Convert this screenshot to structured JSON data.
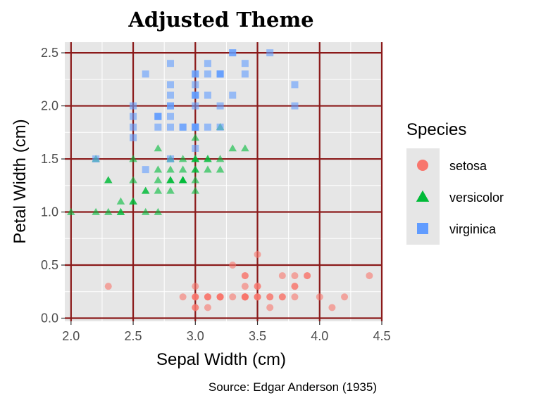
{
  "chart_data": {
    "type": "scatter",
    "title": "Adjusted Theme",
    "xlabel": "Sepal Width (cm)",
    "ylabel": "Petal Width (cm)",
    "caption": "Source: Edgar Anderson (1935)",
    "xlim": [
      1.95,
      4.5
    ],
    "ylim": [
      -0.03,
      2.6
    ],
    "xticks": [
      2.0,
      2.5,
      3.0,
      3.5,
      4.0,
      4.5
    ],
    "xtick_labels": [
      "2.0",
      "2.5",
      "3.0",
      "3.5",
      "4.0",
      "4.5"
    ],
    "yticks": [
      0.0,
      0.5,
      1.0,
      1.5,
      2.0,
      2.5
    ],
    "ytick_labels": [
      "0.0",
      "0.5",
      "1.0",
      "1.5",
      "2.0",
      "2.5"
    ],
    "grid": true,
    "legend": {
      "title": "Species",
      "position": "right"
    },
    "series": [
      {
        "name": "setosa",
        "marker": "circle",
        "color": "#F8766D",
        "points": [
          [
            3.5,
            0.2
          ],
          [
            3.0,
            0.2
          ],
          [
            3.2,
            0.2
          ],
          [
            3.1,
            0.2
          ],
          [
            3.6,
            0.2
          ],
          [
            3.9,
            0.4
          ],
          [
            3.4,
            0.3
          ],
          [
            3.4,
            0.2
          ],
          [
            2.9,
            0.2
          ],
          [
            3.1,
            0.1
          ],
          [
            3.7,
            0.2
          ],
          [
            3.4,
            0.2
          ],
          [
            3.0,
            0.1
          ],
          [
            3.0,
            0.1
          ],
          [
            4.0,
            0.2
          ],
          [
            4.4,
            0.4
          ],
          [
            3.9,
            0.4
          ],
          [
            3.5,
            0.3
          ],
          [
            3.8,
            0.3
          ],
          [
            3.8,
            0.3
          ],
          [
            3.4,
            0.2
          ],
          [
            3.7,
            0.4
          ],
          [
            3.6,
            0.2
          ],
          [
            3.3,
            0.5
          ],
          [
            3.4,
            0.2
          ],
          [
            3.0,
            0.2
          ],
          [
            3.4,
            0.4
          ],
          [
            3.5,
            0.2
          ],
          [
            3.4,
            0.2
          ],
          [
            3.2,
            0.2
          ],
          [
            3.1,
            0.2
          ],
          [
            3.4,
            0.4
          ],
          [
            4.1,
            0.1
          ],
          [
            4.2,
            0.2
          ],
          [
            3.1,
            0.2
          ],
          [
            3.2,
            0.2
          ],
          [
            3.5,
            0.2
          ],
          [
            3.6,
            0.1
          ],
          [
            3.0,
            0.2
          ],
          [
            3.4,
            0.2
          ],
          [
            3.5,
            0.3
          ],
          [
            2.3,
            0.3
          ],
          [
            3.2,
            0.2
          ],
          [
            3.5,
            0.6
          ],
          [
            3.8,
            0.4
          ],
          [
            3.0,
            0.3
          ],
          [
            3.8,
            0.2
          ],
          [
            3.2,
            0.2
          ],
          [
            3.7,
            0.2
          ],
          [
            3.3,
            0.2
          ]
        ]
      },
      {
        "name": "versicolor",
        "marker": "triangle",
        "color": "#00BA38",
        "points": [
          [
            3.2,
            1.4
          ],
          [
            3.2,
            1.5
          ],
          [
            3.1,
            1.5
          ],
          [
            2.3,
            1.3
          ],
          [
            2.8,
            1.5
          ],
          [
            2.8,
            1.3
          ],
          [
            3.3,
            1.6
          ],
          [
            2.4,
            1.0
          ],
          [
            2.9,
            1.3
          ],
          [
            2.7,
            1.4
          ],
          [
            2.0,
            1.0
          ],
          [
            3.0,
            1.5
          ],
          [
            2.2,
            1.0
          ],
          [
            2.9,
            1.4
          ],
          [
            2.9,
            1.3
          ],
          [
            3.1,
            1.4
          ],
          [
            3.0,
            1.5
          ],
          [
            2.7,
            1.0
          ],
          [
            2.2,
            1.5
          ],
          [
            2.5,
            1.1
          ],
          [
            3.2,
            1.8
          ],
          [
            2.8,
            1.3
          ],
          [
            2.5,
            1.5
          ],
          [
            2.8,
            1.2
          ],
          [
            2.9,
            1.3
          ],
          [
            3.0,
            1.4
          ],
          [
            2.8,
            1.4
          ],
          [
            3.0,
            1.7
          ],
          [
            2.9,
            1.5
          ],
          [
            2.6,
            1.0
          ],
          [
            2.4,
            1.1
          ],
          [
            2.4,
            1.0
          ],
          [
            2.7,
            1.2
          ],
          [
            2.7,
            1.6
          ],
          [
            3.0,
            1.5
          ],
          [
            3.4,
            1.6
          ],
          [
            3.1,
            1.5
          ],
          [
            2.3,
            1.3
          ],
          [
            3.0,
            1.3
          ],
          [
            2.5,
            1.3
          ],
          [
            2.6,
            1.2
          ],
          [
            3.0,
            1.4
          ],
          [
            2.6,
            1.2
          ],
          [
            2.3,
            1.0
          ],
          [
            2.7,
            1.3
          ],
          [
            3.0,
            1.2
          ],
          [
            2.9,
            1.3
          ],
          [
            2.9,
            1.3
          ],
          [
            2.5,
            1.1
          ],
          [
            2.8,
            1.3
          ]
        ]
      },
      {
        "name": "virginica",
        "marker": "square",
        "color": "#619CFF",
        "points": [
          [
            3.3,
            2.5
          ],
          [
            2.7,
            1.9
          ],
          [
            3.0,
            2.1
          ],
          [
            2.9,
            1.8
          ],
          [
            3.0,
            2.2
          ],
          [
            3.0,
            2.1
          ],
          [
            2.5,
            1.7
          ],
          [
            2.9,
            1.8
          ],
          [
            2.5,
            1.8
          ],
          [
            3.6,
            2.5
          ],
          [
            3.2,
            2.0
          ],
          [
            2.7,
            1.9
          ],
          [
            3.0,
            2.1
          ],
          [
            2.5,
            2.0
          ],
          [
            2.8,
            2.4
          ],
          [
            3.2,
            2.3
          ],
          [
            3.0,
            1.8
          ],
          [
            3.8,
            2.2
          ],
          [
            2.6,
            2.3
          ],
          [
            2.2,
            1.5
          ],
          [
            3.2,
            2.3
          ],
          [
            2.8,
            2.0
          ],
          [
            2.8,
            2.0
          ],
          [
            2.7,
            1.8
          ],
          [
            3.3,
            2.1
          ],
          [
            3.2,
            1.8
          ],
          [
            2.8,
            1.8
          ],
          [
            3.0,
            1.8
          ],
          [
            2.8,
            2.1
          ],
          [
            3.0,
            1.6
          ],
          [
            2.8,
            1.9
          ],
          [
            3.8,
            2.0
          ],
          [
            2.8,
            2.2
          ],
          [
            2.8,
            1.5
          ],
          [
            2.6,
            1.4
          ],
          [
            3.0,
            2.3
          ],
          [
            3.4,
            2.4
          ],
          [
            3.1,
            1.8
          ],
          [
            3.0,
            1.8
          ],
          [
            3.1,
            2.1
          ],
          [
            3.1,
            2.4
          ],
          [
            3.1,
            2.3
          ],
          [
            2.7,
            1.9
          ],
          [
            3.2,
            2.3
          ],
          [
            3.3,
            2.5
          ],
          [
            3.0,
            2.3
          ],
          [
            2.5,
            1.9
          ],
          [
            3.0,
            2.0
          ],
          [
            3.4,
            2.3
          ],
          [
            3.0,
            1.8
          ]
        ]
      }
    ]
  }
}
